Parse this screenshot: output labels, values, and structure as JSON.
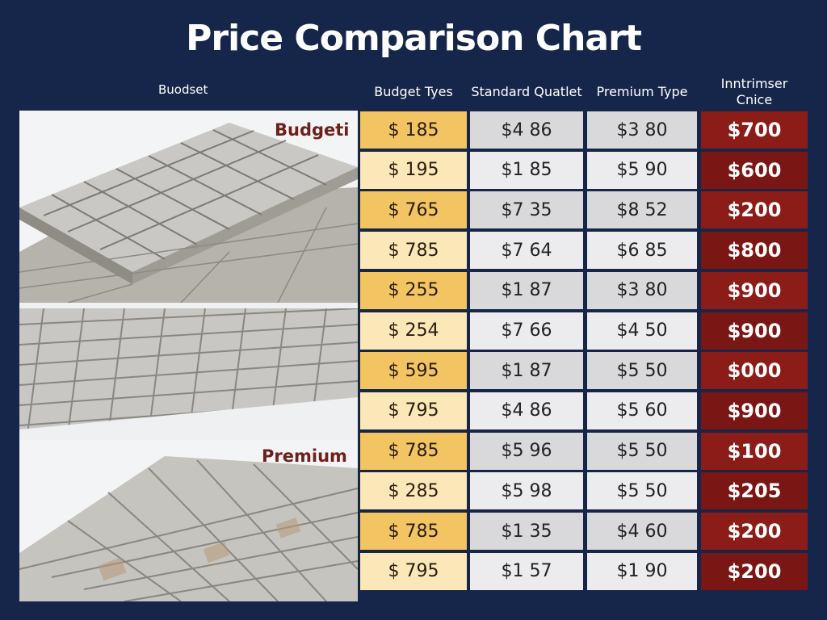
{
  "header": {
    "title": "Price Comparison Chart",
    "side_label": "Buodset"
  },
  "chart_data": {
    "type": "table",
    "title": "Price Comparison Chart",
    "row_header_label": "Buodset",
    "columns": [
      {
        "label": "Budget Tyes",
        "color": "#f2c462"
      },
      {
        "label": "Standard Quatlet",
        "color": "#d9d9dc"
      },
      {
        "label": "Premium Type",
        "color": "#d9d9dc"
      },
      {
        "label": "Inntrimser Cnice",
        "color": "#8b1c18"
      }
    ],
    "rows": [
      [
        "$ 185",
        "$4 86",
        "$3 80",
        "$700"
      ],
      [
        "$ 195",
        "$1 85",
        "$5 90",
        "$600"
      ],
      [
        "$ 765",
        "$7 35",
        "$8 52",
        "$200"
      ],
      [
        "$ 785",
        "$7 64",
        "$6 85",
        "$800"
      ],
      [
        "$ 255",
        "$1 87",
        "$3 80",
        "$900"
      ],
      [
        "$ 254",
        "$7 66",
        "$4 50",
        "$900"
      ],
      [
        "$ 595",
        "$1 87",
        "$5 50",
        "$000"
      ],
      [
        "$ 795",
        "$4 86",
        "$5 60",
        "$900"
      ],
      [
        "$ 785",
        "$5 96",
        "$5 50",
        "$100"
      ],
      [
        "$ 285",
        "$5 98",
        "$5 50",
        "$205"
      ],
      [
        "$ 785",
        "$1 35",
        "$4 60",
        "$200"
      ],
      [
        "$ 795",
        "$1 57",
        "$1 90",
        "$200"
      ]
    ]
  },
  "photos": [
    {
      "label": "Budgeti",
      "icon": "paver-stones-image"
    },
    {
      "label": "",
      "icon": "paver-stones-image"
    },
    {
      "label": "Premium",
      "icon": "paver-stones-image"
    }
  ],
  "colors": {
    "background": "#16264a",
    "budget_dark": "#f2c462",
    "budget_light": "#fbe7b8",
    "neutral_dark": "#d9d9dc",
    "neutral_light": "#ececee",
    "red_dark": "#8b1c18",
    "red_light": "#7a1613"
  }
}
